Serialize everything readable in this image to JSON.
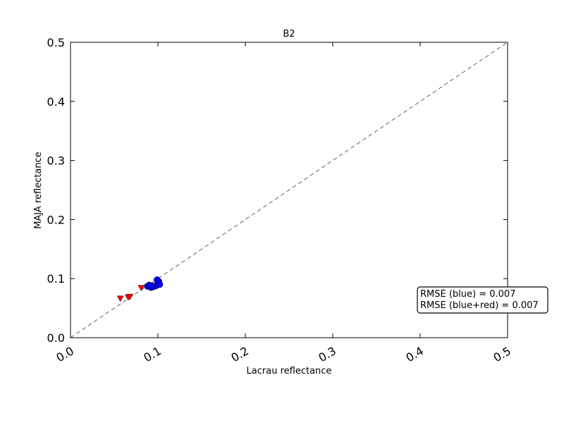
{
  "chart_data": {
    "type": "scatter",
    "title": "B2",
    "x_label": "Lacrau reflectance",
    "y_label": "MAJA reflectance",
    "xlim": [
      0,
      0.5
    ],
    "ylim": [
      0,
      0.5
    ],
    "xticks": [
      {
        "value": 0,
        "label": "0.0"
      },
      0.1,
      0.2,
      0.3,
      0.4,
      0.5
    ],
    "yticks": [
      {
        "value": 0,
        "label": "0.0"
      },
      0.1,
      0.2,
      0.3,
      0.4,
      0.5
    ],
    "identity_line": true,
    "series": [
      {
        "color": "#0000ff",
        "marker": "circle",
        "x": [
          0.088,
          0.09,
          0.092,
          0.094,
          0.096,
          0.098,
          0.1,
          0.1,
          0.101,
          0.102,
          0.093,
          0.099
        ],
        "values": [
          0.087,
          0.089,
          0.085,
          0.086,
          0.087,
          0.088,
          0.092,
          0.097,
          0.095,
          0.09,
          0.088,
          0.098
        ]
      },
      {
        "color": "#ff0000",
        "marker": "triangle-down",
        "x": [
          0.057,
          0.066,
          0.068,
          0.081
        ],
        "values": [
          0.066,
          0.068,
          0.069,
          0.084
        ]
      }
    ],
    "annotation": [
      "RMSE (blue) = 0.007",
      "RMSE (blue+red) = 0.007"
    ]
  }
}
